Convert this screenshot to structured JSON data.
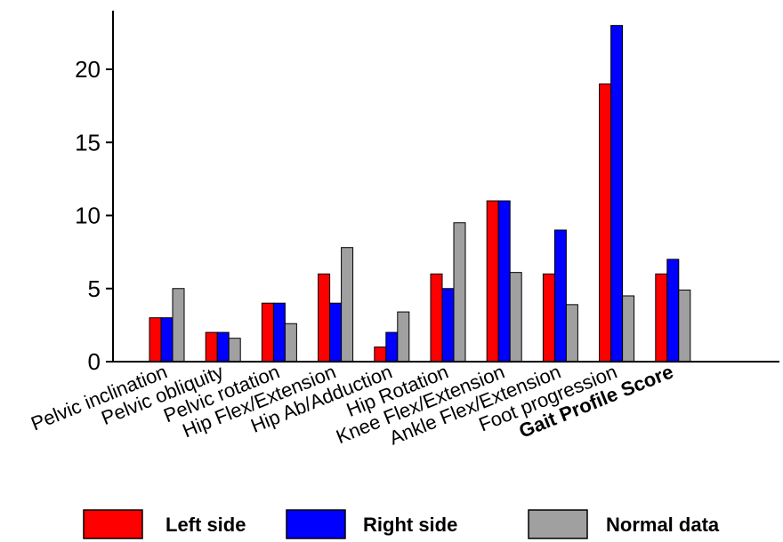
{
  "chart_data": {
    "type": "bar",
    "categories": [
      "Pelvic inclination",
      "Pelvic obliquity",
      "Pelvic rotation",
      "Hip Flex/Extension",
      "Hip Ab/Adduction",
      "Hip Rotation",
      "Knee Flex/Extension",
      "Ankle Flex/Extension",
      "Foot progression",
      "Gait Profile Score"
    ],
    "bold_categories": [
      "Gait Profile Score"
    ],
    "series": [
      {
        "name": "Left side",
        "color": "#ff0000",
        "values": [
          3,
          2,
          4,
          6,
          1,
          6,
          11,
          6,
          19,
          6
        ]
      },
      {
        "name": "Right side",
        "color": "#0000ff",
        "values": [
          3,
          2,
          4,
          4,
          2,
          5,
          11,
          9,
          23,
          7
        ]
      },
      {
        "name": "Normal data",
        "color": "#a0a0a0",
        "values": [
          5,
          1.6,
          2.6,
          7.8,
          3.4,
          9.5,
          6.1,
          3.9,
          4.5,
          4.9
        ]
      }
    ],
    "yticks": [
      0,
      5,
      10,
      15,
      20
    ],
    "ylim": [
      0,
      24
    ],
    "grid": false,
    "legend_position": "bottom"
  }
}
